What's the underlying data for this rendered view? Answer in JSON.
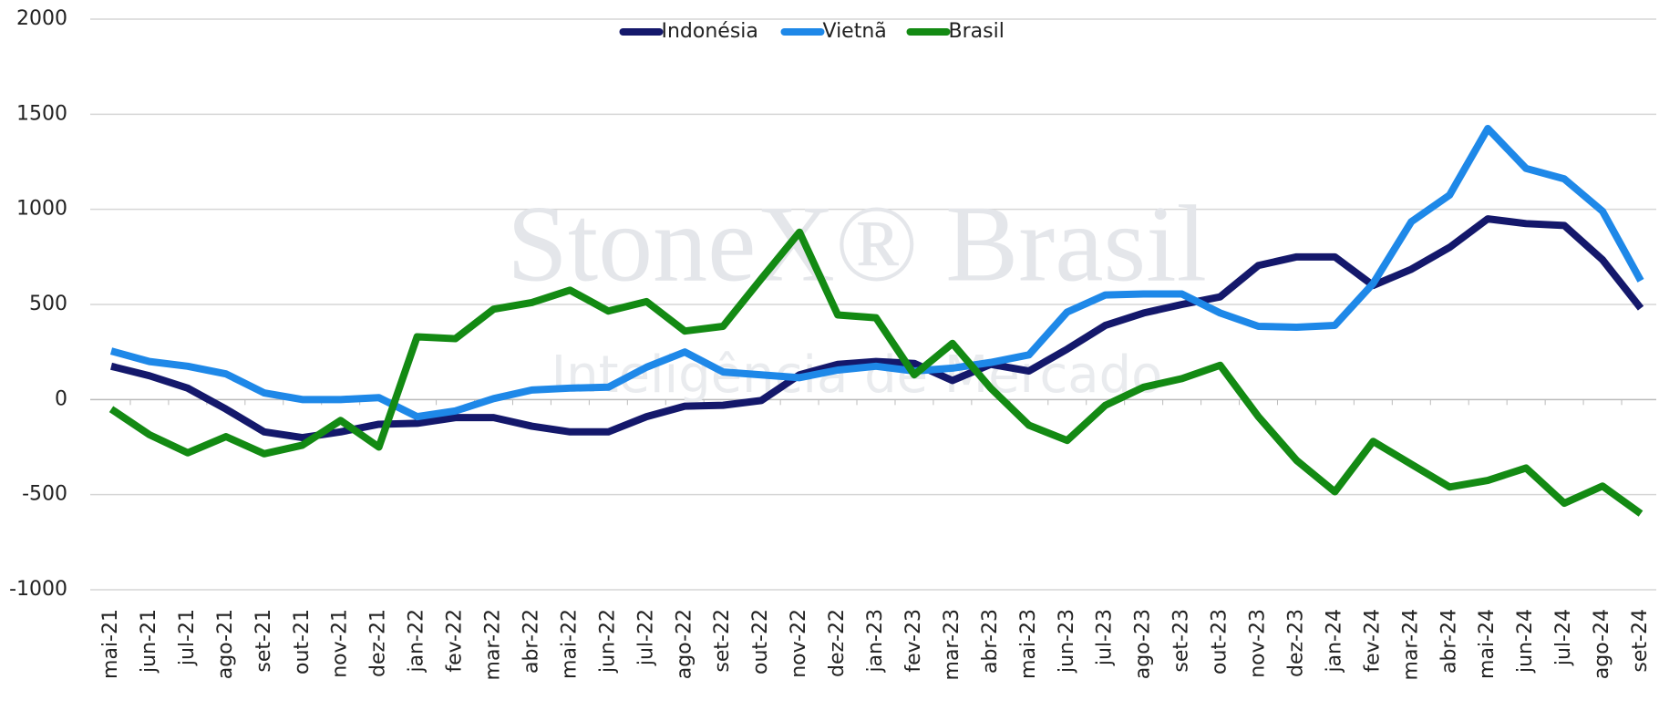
{
  "chart_data": {
    "type": "line",
    "categories": [
      "mai-21",
      "jun-21",
      "jul-21",
      "ago-21",
      "set-21",
      "out-21",
      "nov-21",
      "dez-21",
      "jan-22",
      "fev-22",
      "mar-22",
      "abr-22",
      "mai-22",
      "jun-22",
      "jul-22",
      "ago-22",
      "set-22",
      "out-22",
      "nov-22",
      "dez-22",
      "jan-23",
      "fev-23",
      "mar-23",
      "abr-23",
      "mai-23",
      "jun-23",
      "jul-23",
      "ago-23",
      "set-23",
      "out-23",
      "nov-23",
      "dez-23",
      "jan-24",
      "fev-24",
      "mar-24",
      "abr-24",
      "mai-24",
      "jun-24",
      "jul-24",
      "ago-24",
      "set-24"
    ],
    "series": [
      {
        "name": "Indonésia",
        "color": "#14186b",
        "values": [
          175,
          125,
          60,
          -50,
          -170,
          -200,
          -170,
          -130,
          -125,
          -95,
          -95,
          -140,
          -170,
          -170,
          -90,
          -35,
          -30,
          -5,
          130,
          185,
          200,
          190,
          100,
          185,
          150,
          265,
          390,
          455,
          500,
          540,
          705,
          750,
          750,
          600,
          685,
          800,
          950,
          925,
          915,
          735,
          480
        ]
      },
      {
        "name": "Vietnã",
        "color": "#1e88e8",
        "values": [
          255,
          200,
          175,
          135,
          35,
          0,
          0,
          10,
          -90,
          -60,
          5,
          50,
          60,
          65,
          170,
          250,
          145,
          130,
          115,
          155,
          175,
          150,
          165,
          195,
          235,
          460,
          550,
          555,
          555,
          455,
          385,
          380,
          390,
          610,
          935,
          1075,
          1425,
          1215,
          1160,
          990,
          625
        ]
      },
      {
        "name": "Brasil",
        "color": "#138a13",
        "values": [
          -50,
          -185,
          -280,
          -195,
          -285,
          -240,
          -110,
          -250,
          330,
          320,
          475,
          510,
          575,
          465,
          515,
          360,
          385,
          635,
          880,
          445,
          430,
          130,
          295,
          60,
          -135,
          -215,
          -30,
          65,
          110,
          180,
          -90,
          -320,
          -485,
          -220,
          -340,
          -460,
          -425,
          -360,
          -545,
          -455,
          -600
        ]
      }
    ],
    "ylim": [
      -1000,
      2000
    ],
    "yticks": [
      -1000,
      -500,
      0,
      500,
      1000,
      1500,
      2000
    ],
    "grid": true,
    "legend": "top",
    "watermark": [
      "StoneX® Brasil",
      "Inteligência de Mercado"
    ]
  }
}
